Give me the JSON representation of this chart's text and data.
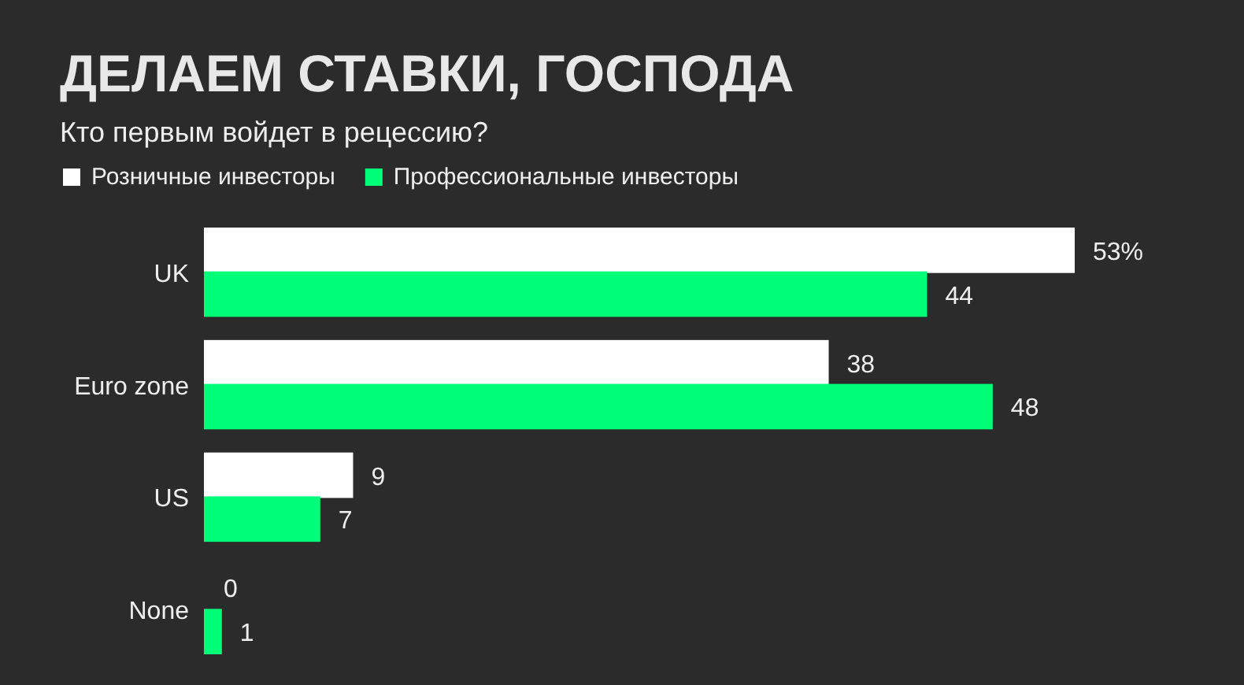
{
  "chart_data": {
    "type": "bar",
    "orientation": "horizontal",
    "title": "ДЕЛАЕМ СТАВКИ, ГОСПОДА",
    "subtitle": "Кто первым войдет в рецессию?",
    "categories": [
      "UK",
      "Euro zone",
      "US",
      "None"
    ],
    "series": [
      {
        "name": "Розничные инвесторы",
        "color": "#ffffff",
        "values": [
          53,
          38,
          9,
          0
        ],
        "value_labels": [
          "53%",
          "38",
          "9",
          "0"
        ]
      },
      {
        "name": "Профессиональные инвесторы",
        "color": "#00ff78",
        "values": [
          44,
          48,
          7,
          1
        ],
        "value_labels": [
          "44",
          "48",
          "7",
          "1"
        ]
      }
    ],
    "legend": "top left",
    "grid": false
  }
}
